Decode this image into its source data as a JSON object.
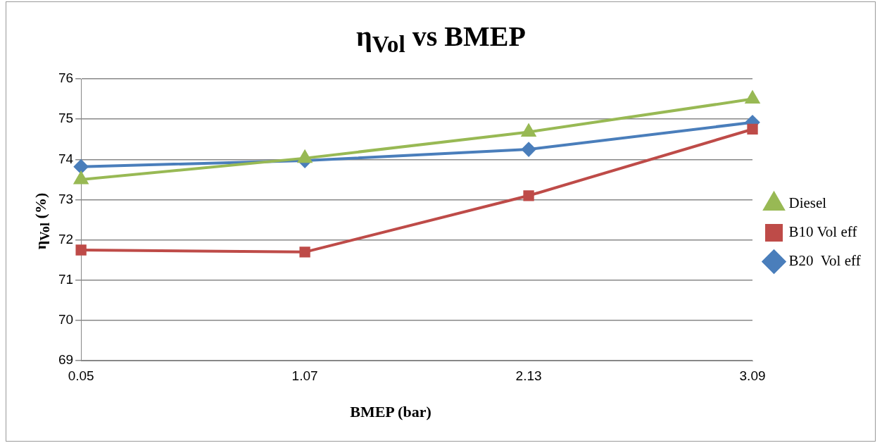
{
  "chart_data": {
    "type": "line",
    "title": "η$_{Vol}$ vs BMEP",
    "xlabel": "BMEP (bar)",
    "ylabel": "η$_{Vol}$ (%)",
    "categories": [
      "0.05",
      "1.07",
      "2.13",
      "3.09"
    ],
    "series": [
      {
        "name": "B20  Vol eff",
        "color": "#4a7ebb",
        "marker": "diamond",
        "values": [
          73.82,
          73.97,
          74.25,
          74.92
        ]
      },
      {
        "name": "B10 Vol eff",
        "color": "#be4b48",
        "marker": "square",
        "values": [
          71.75,
          71.7,
          73.1,
          74.75
        ]
      },
      {
        "name": "Diesel",
        "color": "#98b954",
        "marker": "triangle",
        "values": [
          73.5,
          74.03,
          74.68,
          75.5
        ]
      }
    ],
    "ylim": [
      69,
      76
    ],
    "yticks": [
      69,
      70,
      71,
      72,
      73,
      74,
      75,
      76
    ],
    "grid": "y",
    "legend": "right"
  }
}
